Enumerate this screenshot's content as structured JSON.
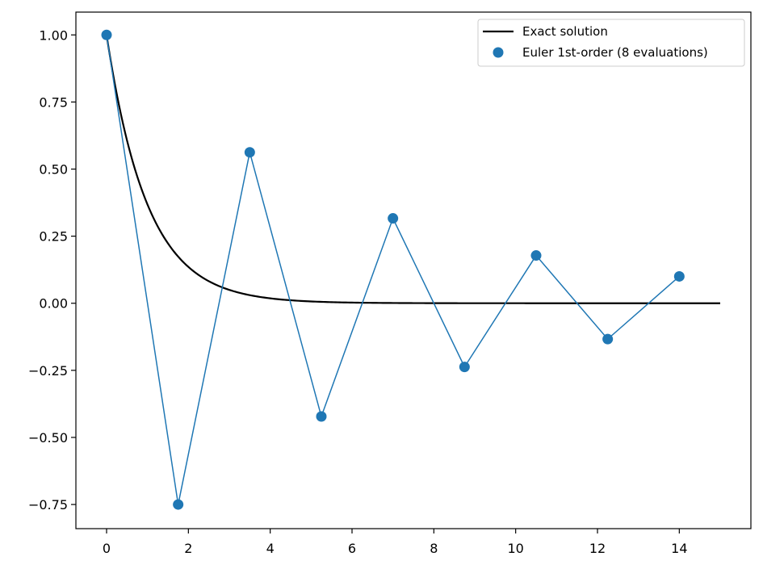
{
  "chart_data": {
    "type": "line",
    "title": "",
    "xlabel": "",
    "ylabel": "",
    "xlim": [
      -0.75,
      15.75
    ],
    "ylim": [
      -0.84,
      1.085
    ],
    "xticks": [
      0,
      2,
      4,
      6,
      8,
      10,
      12,
      14
    ],
    "xtick_labels": [
      "0",
      "2",
      "4",
      "6",
      "8",
      "10",
      "12",
      "14"
    ],
    "yticks": [
      1.0,
      0.75,
      0.5,
      0.25,
      0.0,
      -0.25,
      -0.5,
      -0.75
    ],
    "ytick_labels": [
      "1.00",
      "0.75",
      "0.50",
      "0.25",
      "0.00",
      "−0.25",
      "−0.50",
      "−0.75"
    ],
    "grid": false,
    "legend_position": "top-right",
    "series": [
      {
        "name": "Exact solution",
        "style": "line",
        "color": "#000000",
        "function": "exp(-t)",
        "x_range": [
          0,
          15
        ]
      },
      {
        "name": "Euler 1st-order (8 evaluations)",
        "style": "line+markers",
        "color": "#1f77b4",
        "x": [
          0,
          1.75,
          3.5,
          5.25,
          7.0,
          8.75,
          10.5,
          12.25,
          14.0
        ],
        "y": [
          1.0,
          -0.75,
          0.5625,
          -0.4219,
          0.3164,
          -0.2373,
          0.178,
          -0.1335,
          0.1001
        ]
      }
    ]
  }
}
